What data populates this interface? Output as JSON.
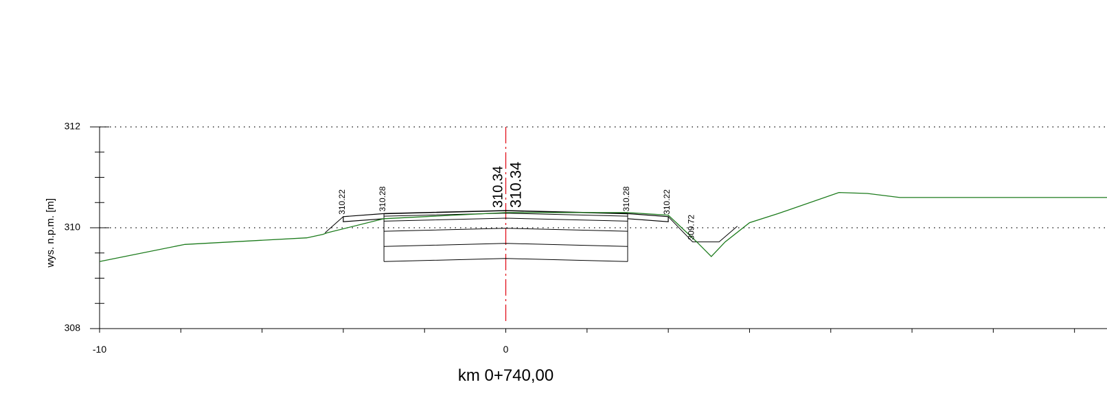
{
  "section_title": "km 0+740,00",
  "y_axis": {
    "label": "wys. n.p.m. [m]",
    "ticks": [
      "308",
      "310",
      "312"
    ],
    "range": [
      308,
      312
    ],
    "minor_step": 0.5
  },
  "x_axis": {
    "ticks": [
      "-10",
      "0"
    ],
    "range": [
      -10,
      14.8
    ],
    "minor_step": 2
  },
  "grid": {
    "dotted_levels": [
      310,
      312
    ]
  },
  "axis_line": {
    "x": 0,
    "color": "#e0000f"
  },
  "colors": {
    "terrain": "#1a7a1a",
    "design": "#000000",
    "axis": "#e0000f",
    "terrain_label": "#1a7a1a",
    "design_label": "#e0000f"
  },
  "axis_elevations": {
    "terrain": "310.34",
    "design": "310.34"
  },
  "point_labels": [
    {
      "x": -4.0,
      "y": 310.22,
      "text": "310.22"
    },
    {
      "x": -3.0,
      "y": 310.28,
      "text": "310.28"
    },
    {
      "x": 3.0,
      "y": 310.28,
      "text": "310.28"
    },
    {
      "x": 4.0,
      "y": 310.22,
      "text": "310.22"
    },
    {
      "x": 4.6,
      "y": 309.72,
      "text": "309.72"
    }
  ],
  "terrain_line": [
    [
      -10.0,
      309.33
    ],
    [
      -7.9,
      309.67
    ],
    [
      -4.9,
      309.8
    ],
    [
      -4.5,
      309.87
    ],
    [
      -4.4,
      309.9
    ],
    [
      -3.0,
      310.18
    ],
    [
      0.0,
      310.3
    ],
    [
      3.0,
      310.3
    ],
    [
      4.0,
      310.25
    ],
    [
      4.7,
      309.72
    ],
    [
      5.06,
      309.43
    ],
    [
      5.4,
      309.72
    ],
    [
      6.0,
      310.1
    ],
    [
      6.7,
      310.28
    ],
    [
      8.2,
      310.7
    ],
    [
      8.9,
      310.68
    ],
    [
      9.7,
      310.6
    ],
    [
      14.8,
      310.6
    ]
  ],
  "design_layers": [
    [
      [
        -3.0,
        310.28
      ],
      [
        0.0,
        310.34
      ],
      [
        3.0,
        310.28
      ]
    ],
    [
      [
        -3.0,
        310.23
      ],
      [
        0.0,
        310.29
      ],
      [
        3.0,
        310.23
      ]
    ],
    [
      [
        -3.0,
        310.13
      ],
      [
        0.0,
        310.19
      ],
      [
        3.0,
        310.13
      ]
    ],
    [
      [
        -3.0,
        309.93
      ],
      [
        0.0,
        309.99
      ],
      [
        3.0,
        309.93
      ]
    ],
    [
      [
        -3.0,
        309.63
      ],
      [
        0.0,
        309.69
      ],
      [
        3.0,
        309.63
      ]
    ],
    [
      [
        -3.0,
        309.33
      ],
      [
        0.0,
        309.39
      ],
      [
        3.0,
        309.33
      ]
    ]
  ],
  "design_box_sides": [
    [
      [
        -3.0,
        310.28
      ],
      [
        -3.0,
        309.33
      ]
    ],
    [
      [
        3.0,
        310.28
      ],
      [
        3.0,
        309.33
      ]
    ]
  ],
  "shoulders": [
    [
      [
        -3.0,
        310.28
      ],
      [
        -4.0,
        310.22
      ],
      [
        -4.0,
        310.12
      ],
      [
        -3.0,
        310.18
      ]
    ],
    [
      [
        3.0,
        310.28
      ],
      [
        4.0,
        310.22
      ],
      [
        4.0,
        310.12
      ],
      [
        3.0,
        310.18
      ]
    ]
  ],
  "slopes": [
    [
      [
        -4.0,
        310.22
      ],
      [
        -4.45,
        309.9
      ]
    ],
    [
      [
        4.0,
        310.22
      ],
      [
        4.6,
        309.72
      ],
      [
        5.25,
        309.72
      ],
      [
        5.7,
        310.03
      ]
    ]
  ]
}
